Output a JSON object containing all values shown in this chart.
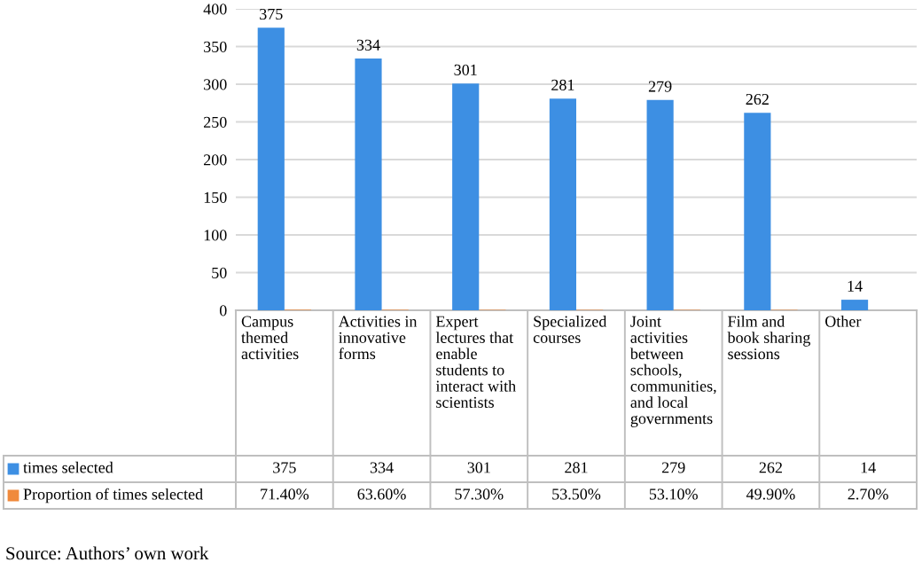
{
  "chart_data": {
    "type": "bar",
    "categories": [
      "Campus themed activities",
      "Activities in innovative forms",
      "Expert lectures that enable students to interact with scientists",
      "Specialized courses",
      "Joint activities between schools, communities, and local governments",
      "Film and book sharing sessions",
      "Other"
    ],
    "series": [
      {
        "name": "times selected",
        "color": "#3d8fe3",
        "values": [
          375,
          334,
          301,
          281,
          279,
          262,
          14
        ],
        "value_labels": [
          "375",
          "334",
          "301",
          "281",
          "279",
          "262",
          "14"
        ]
      },
      {
        "name": "Proportion of times selected",
        "color": "#f08a3c",
        "values": [
          0.714,
          0.636,
          0.573,
          0.535,
          0.531,
          0.499,
          0.027
        ],
        "value_labels": [
          "71.40%",
          "63.60%",
          "57.30%",
          "53.50%",
          "53.10%",
          "49.90%",
          "2.70%"
        ]
      }
    ],
    "ylim": [
      0,
      400
    ],
    "yticks": [
      0,
      50,
      100,
      150,
      200,
      250,
      300,
      350,
      400
    ],
    "grid": "y",
    "legend": "bottom",
    "annotations": [
      "Source: Authors’ own work"
    ]
  }
}
